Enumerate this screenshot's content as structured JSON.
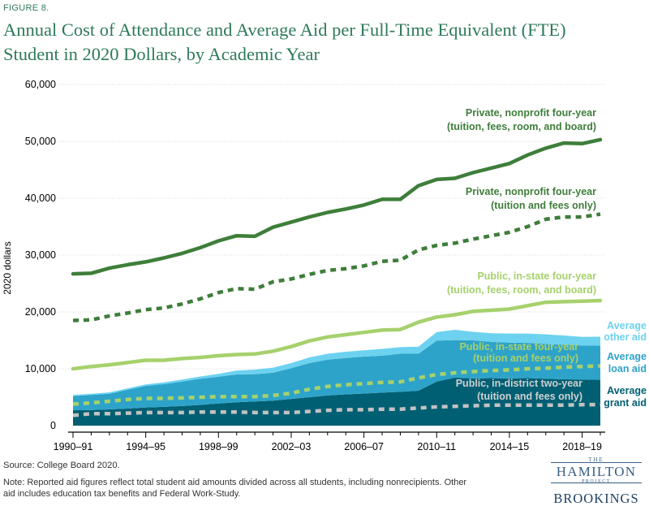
{
  "figure_label": "FIGURE 8.",
  "title_line1": "Annual Cost of Attendance and Average Aid per Full-Time Equivalent (FTE)",
  "title_line2": "Student in 2020 Dollars, by Academic Year",
  "source": "Source:  College Board 2020.",
  "note_line1": "Note: Reported aid figures reflect total student aid amounts divided across all students, including nonrecipients. Other",
  "note_line2": "aid includes education tax benefits and Federal Work-Study.",
  "logo": {
    "the": "THE",
    "hamilton": "HAMILTON",
    "project": "PROJECT",
    "brookings": "BROOKINGS"
  },
  "colors": {
    "private_line": "#3e7e3a",
    "public4_line": "#a6d16c",
    "public2_line": "#c2c2c2",
    "grant_area": "#005f73",
    "loan_area": "#2ea3c9",
    "other_area": "#6cd2f0",
    "label_green": "#3e7e3a",
    "label_lightgreen": "#a6d16c",
    "label_gray": "#d0d0d0",
    "label_grant": "#005f73",
    "label_loan": "#2ea3c9",
    "label_other": "#6cd2f0",
    "text_axis": "#000000"
  },
  "chart_data": {
    "type": "area",
    "ylabel": "2020 dollars",
    "ylim": [
      0,
      60000
    ],
    "yticks": [
      0,
      10000,
      20000,
      30000,
      40000,
      50000,
      60000
    ],
    "ytick_labels": [
      "0",
      "10,000",
      "20,000",
      "30,000",
      "40,000",
      "50,000",
      "60,000"
    ],
    "xtick_labels": [
      "1990–91",
      "1994–95",
      "1998–99",
      "2002–03",
      "2006–07",
      "2010–11",
      "2014–15",
      "2018–19"
    ],
    "xtick_indices": [
      0,
      4,
      8,
      12,
      16,
      20,
      24,
      28
    ],
    "categories": [
      "1990–91",
      "1991–92",
      "1992–93",
      "1993–94",
      "1994–95",
      "1995–96",
      "1996–97",
      "1997–98",
      "1998–99",
      "1999–00",
      "2000–01",
      "2001–02",
      "2002–03",
      "2003–04",
      "2004–05",
      "2005–06",
      "2006–07",
      "2007–08",
      "2008–09",
      "2009–10",
      "2010–11",
      "2011–12",
      "2012–13",
      "2013–14",
      "2014–15",
      "2015–16",
      "2016–17",
      "2017–18",
      "2018–19",
      "2019–20"
    ],
    "stacked_areas": [
      {
        "name": "Average grant aid",
        "values": [
          2700,
          2750,
          2850,
          3000,
          3200,
          3300,
          3450,
          3650,
          3900,
          4100,
          4250,
          4400,
          4700,
          5000,
          5300,
          5500,
          5650,
          5800,
          5950,
          6150,
          7750,
          8450,
          8300,
          8350,
          8300,
          8350,
          8250,
          8150,
          8100,
          8050
        ]
      },
      {
        "name": "Average loan aid",
        "values": [
          2500,
          2650,
          2750,
          3300,
          3800,
          4000,
          4300,
          4600,
          4700,
          4900,
          4800,
          4900,
          5400,
          6000,
          6300,
          6400,
          6500,
          6500,
          6700,
          6500,
          7200,
          6600,
          6700,
          6400,
          6300,
          6200,
          6100,
          6100,
          6000,
          6000
        ]
      },
      {
        "name": "Average other aid",
        "values": [
          200,
          200,
          250,
          250,
          250,
          300,
          350,
          400,
          500,
          700,
          800,
          900,
          900,
          1000,
          1050,
          1100,
          1100,
          1200,
          1150,
          1250,
          1500,
          1800,
          1500,
          1500,
          1600,
          1650,
          1700,
          1600,
          1500,
          1600
        ]
      }
    ],
    "line_series": [
      {
        "name": "Private, nonprofit four-year",
        "subname": "(tuition, fees, room, and board)",
        "style": "solid",
        "values": [
          26700,
          26800,
          27700,
          28300,
          28800,
          29500,
          30300,
          31300,
          32500,
          33400,
          33300,
          34900,
          35800,
          36700,
          37500,
          38100,
          38800,
          39800,
          39800,
          42200,
          43300,
          43500,
          44500,
          45300,
          46100,
          47600,
          48800,
          49700,
          49600,
          50300
        ]
      },
      {
        "name": "Private, nonprofit four-year",
        "subname": "(tuition and fees only)",
        "style": "dashed",
        "values": [
          18500,
          18600,
          19300,
          19800,
          20400,
          20700,
          21400,
          22300,
          23400,
          24100,
          24000,
          25300,
          25800,
          26600,
          27300,
          27600,
          28100,
          28900,
          29100,
          30900,
          31700,
          32100,
          32800,
          33400,
          34000,
          35000,
          36300,
          36700,
          36700,
          37200
        ]
      },
      {
        "name": "Public, in-state four-year",
        "subname": "(tuition, fees, room, and board)",
        "style": "solid",
        "values": [
          10000,
          10400,
          10700,
          11100,
          11500,
          11500,
          11800,
          12000,
          12300,
          12500,
          12600,
          13100,
          13900,
          14900,
          15600,
          16000,
          16400,
          16800,
          16900,
          18200,
          19100,
          19500,
          20100,
          20300,
          20500,
          21100,
          21700,
          21800,
          21900,
          22000
        ]
      },
      {
        "name": "Public, in-state four-year",
        "subname": "(tuition and fees only)",
        "style": "dashed",
        "values": [
          3800,
          4000,
          4300,
          4600,
          4800,
          4800,
          4900,
          5000,
          5100,
          5100,
          5100,
          5300,
          5700,
          6400,
          6900,
          7200,
          7400,
          7600,
          7700,
          8400,
          9000,
          9300,
          9500,
          9700,
          9800,
          10000,
          10100,
          10300,
          10400,
          10500
        ]
      },
      {
        "name": "Public, in-district two-year",
        "subname": "(tuition and fees only)",
        "style": "dashed",
        "values": [
          1800,
          2100,
          2100,
          2200,
          2300,
          2300,
          2300,
          2400,
          2400,
          2400,
          2300,
          2300,
          2300,
          2500,
          2700,
          2800,
          2800,
          2900,
          2900,
          3100,
          3300,
          3400,
          3500,
          3600,
          3600,
          3600,
          3600,
          3600,
          3700,
          3700
        ]
      }
    ],
    "annotations": {
      "priv_full_1": "Private, nonprofit four-year",
      "priv_full_2": "(tuition, fees, room, and board)",
      "priv_tf_1": "Private, nonprofit four-year",
      "priv_tf_2": "(tuition and fees only)",
      "pub4_full_1": "Public, in-state four-year",
      "pub4_full_2": "(tuition, fees, room, and board)",
      "pub4_tf_1": "Public, in-state four-year",
      "pub4_tf_2": "(tuition and fees only)",
      "pub2_1": "Public, in-district two-year",
      "pub2_2": "(tuition and fees only)",
      "other_1": "Average",
      "other_2": "other aid",
      "loan_1": "Average",
      "loan_2": "loan aid",
      "grant_1": "Average",
      "grant_2": "grant aid"
    }
  }
}
